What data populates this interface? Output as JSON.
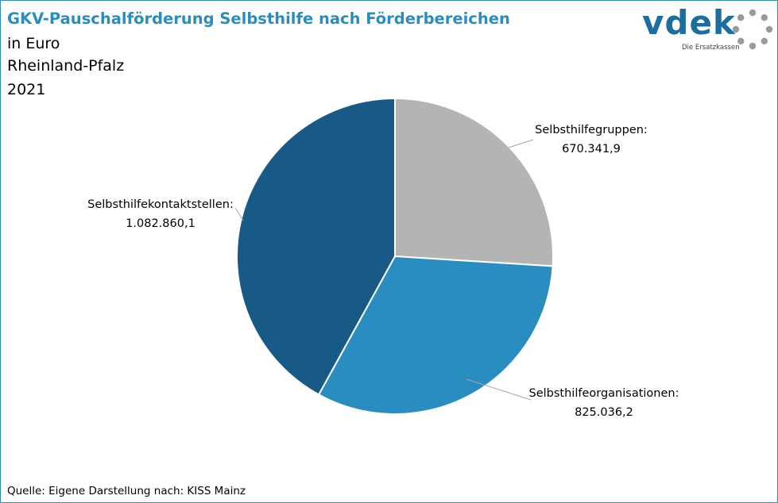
{
  "header": {
    "title": "GKV-Pauschalförderung Selbsthilfe nach Förderbereichen",
    "unit_line": "in Euro",
    "region_line": "Rheinland-Pfalz",
    "year_line": "2021"
  },
  "logo": {
    "wordmark": "vdek",
    "tagline": "Die Ersatzkassen"
  },
  "footer": {
    "source": "Quelle: Eigene Darstellung nach: KISS Mainz"
  },
  "colors": {
    "title": "#2b8cbe",
    "frame": "#2d8bbf"
  },
  "chart_data": {
    "type": "pie",
    "title": "GKV-Pauschalförderung Selbsthilfe nach Förderbereichen",
    "subtitle": "in Euro",
    "slices": [
      {
        "label": "Selbsthilfegruppen:",
        "value": 670341.9,
        "value_text": "670.341,9",
        "color": "#b4b4b4"
      },
      {
        "label": "Selbsthilfeorganisationen:",
        "value": 825036.2,
        "value_text": "825.036,2",
        "color": "#2a8dc0"
      },
      {
        "label": "Selbsthilfekontaktstellen:",
        "value": 1082860.1,
        "value_text": "1.082.860,1",
        "color": "#165a85"
      }
    ],
    "start_angle": "12 o'clock",
    "direction": "clockwise"
  }
}
